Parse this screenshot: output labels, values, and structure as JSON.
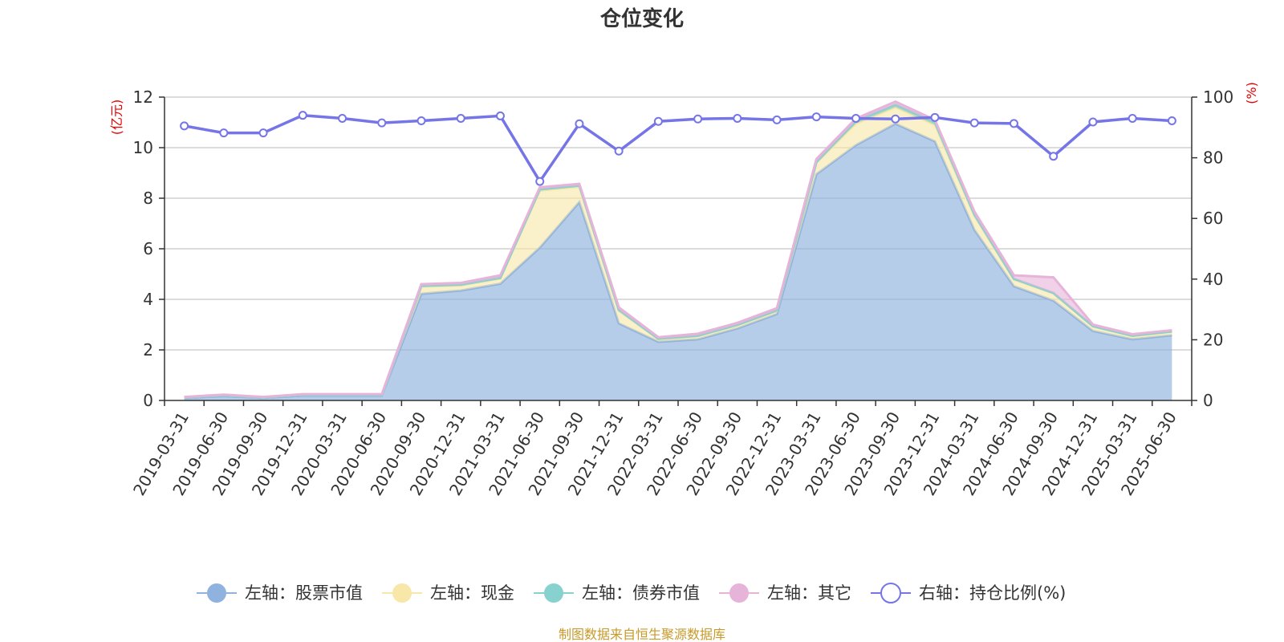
{
  "title": "仓位变化",
  "source": "制图数据来自恒生聚源数据库",
  "colors": {
    "stock": "#8fb2df",
    "cash": "#f7e7a8",
    "bond": "#87d1cf",
    "other": "#e6b3d9",
    "ratio": "#7575e8",
    "axis_unit": "#e60000",
    "source": "#c89a2a"
  },
  "chart_data": {
    "type": "area",
    "title": "仓位变化",
    "categories": [
      "2019-03-31",
      "2019-06-30",
      "2019-09-30",
      "2019-12-31",
      "2020-03-31",
      "2020-06-30",
      "2020-09-30",
      "2020-12-31",
      "2021-03-31",
      "2021-06-30",
      "2021-09-30",
      "2021-12-31",
      "2022-03-31",
      "2022-06-30",
      "2022-09-30",
      "2022-12-31",
      "2023-03-31",
      "2023-06-30",
      "2023-09-30",
      "2023-12-31",
      "2024-03-31",
      "2024-06-30",
      "2024-09-30",
      "2024-12-31",
      "2025-03-31",
      "2025-06-30"
    ],
    "left_axis": {
      "unit": "(亿元)",
      "ylim": [
        0,
        12
      ],
      "ticks": [
        0,
        2,
        4,
        6,
        8,
        10,
        12
      ]
    },
    "right_axis": {
      "unit": "(%)",
      "ylim": [
        0,
        100
      ],
      "ticks": [
        0,
        20,
        40,
        60,
        80,
        100
      ]
    },
    "grid": true,
    "legend_position": "bottom",
    "series": [
      {
        "name": "左轴：股票市值",
        "axis": "left",
        "stacked": true,
        "color_key": "stock",
        "values": [
          0.1,
          0.17,
          0.1,
          0.19,
          0.19,
          0.19,
          4.22,
          4.35,
          4.62,
          6.05,
          7.85,
          3.05,
          2.32,
          2.42,
          2.85,
          3.42,
          8.95,
          10.1,
          10.95,
          10.25,
          6.75,
          4.52,
          3.95,
          2.75,
          2.42,
          2.58
        ]
      },
      {
        "name": "左轴：现金",
        "axis": "left",
        "stacked": true,
        "color_key": "cash",
        "values": [
          0.02,
          0.03,
          0.02,
          0.03,
          0.03,
          0.03,
          0.28,
          0.2,
          0.2,
          2.25,
          0.6,
          0.5,
          0.1,
          0.12,
          0.12,
          0.12,
          0.45,
          0.85,
          0.65,
          0.65,
          0.55,
          0.27,
          0.28,
          0.17,
          0.12,
          0.13
        ]
      },
      {
        "name": "左轴：债券市值",
        "axis": "left",
        "stacked": true,
        "color_key": "bond",
        "values": [
          0,
          0,
          0,
          0,
          0,
          0,
          0.03,
          0.03,
          0.03,
          0.05,
          0.05,
          0.03,
          0.02,
          0.02,
          0.02,
          0.02,
          0.03,
          0.1,
          0.1,
          0.1,
          0.05,
          0.02,
          0.02,
          0.02,
          0.02,
          0.02
        ]
      },
      {
        "name": "左轴：其它",
        "axis": "left",
        "stacked": true,
        "color_key": "other",
        "values": [
          0.02,
          0.03,
          0.02,
          0.03,
          0.03,
          0.03,
          0.07,
          0.07,
          0.1,
          0.08,
          0.07,
          0.1,
          0.06,
          0.08,
          0.08,
          0.09,
          0.12,
          0.1,
          0.12,
          0.1,
          0.12,
          0.14,
          0.62,
          0.06,
          0.06,
          0.05
        ]
      },
      {
        "name": "右轴：持仓比例(%)",
        "axis": "right",
        "type": "line",
        "color_key": "ratio",
        "values": [
          90.5,
          88.2,
          88.2,
          94.0,
          93.0,
          91.5,
          92.2,
          93.0,
          93.8,
          72.2,
          91.2,
          82.2,
          92.0,
          92.8,
          93.0,
          92.5,
          93.5,
          93.0,
          92.8,
          93.3,
          91.5,
          91.3,
          80.5,
          91.8,
          93.0,
          92.2
        ]
      }
    ]
  }
}
